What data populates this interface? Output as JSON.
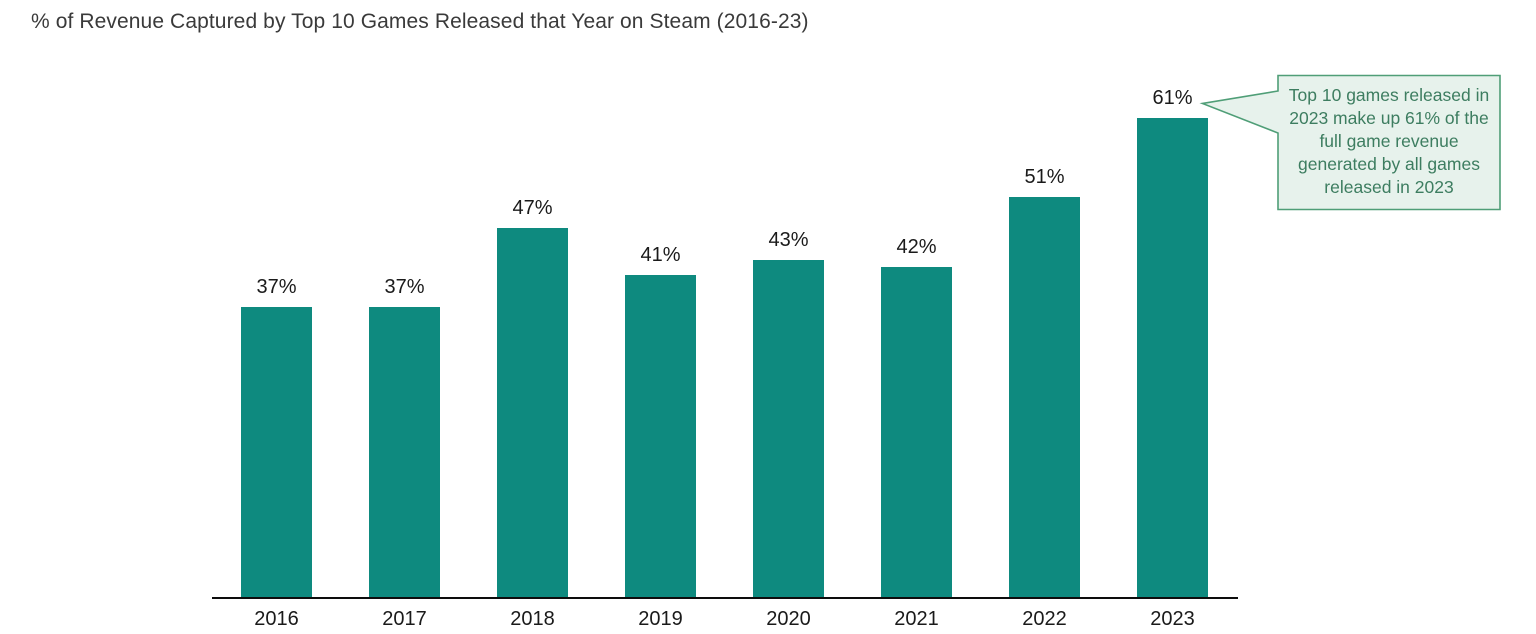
{
  "title": "% of Revenue Captured by Top 10 Games Released that Year on Steam (2016-23)",
  "chart_data": {
    "type": "bar",
    "categories": [
      "2016",
      "2017",
      "2018",
      "2019",
      "2020",
      "2021",
      "2022",
      "2023"
    ],
    "values": [
      37,
      37,
      47,
      41,
      43,
      42,
      51,
      61
    ],
    "value_labels": [
      "37%",
      "37%",
      "47%",
      "41%",
      "43%",
      "42%",
      "51%",
      "61%"
    ],
    "title": "% of Revenue Captured by Top 10 Games Released that Year on Steam (2016-23)",
    "xlabel": "",
    "ylabel": "",
    "ylim": [
      0,
      65
    ],
    "grid": false,
    "legend": false,
    "y_axis_ticks_visible": false,
    "bar_color": "#0e8a7f"
  },
  "callout": {
    "text": "Top 10 games released in 2023 make up 61% of the full game revenue generated by all games released in 2023",
    "points_to": "61% label on 2023 bar",
    "background_color": "#e7f2ec",
    "border_color": "#4f9e77",
    "text_color": "#3d7d60"
  },
  "colors": {
    "bar": "#0e8a7f",
    "axis": "#0d0d0d",
    "label_text": "#1a1a1a",
    "title_text": "#3a3a3a"
  }
}
